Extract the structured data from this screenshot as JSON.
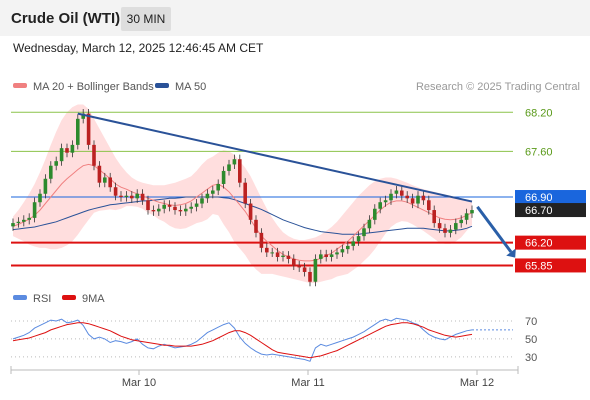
{
  "header": {
    "title": "Crude Oil (WTI)",
    "timeframe": "30 MIN",
    "timestamp": "Wednesday, March 12, 2025 12:46:45 AM CET"
  },
  "legend": {
    "ma20_label": "MA 20 + Bollinger Bands",
    "ma50_label": "MA 50",
    "credit": "Research © 2025 Trading Central"
  },
  "colors": {
    "ma20": "#f08080",
    "ma50": "#2a5298",
    "bands_fill": "#ffd6d6",
    "resistance": "#8bc34a",
    "support": "#dd1111",
    "pivot": "#1a66dd",
    "candle_up": "#2d8a2d",
    "candle_down": "#bb2222",
    "rsi": "#5b8be0",
    "rsi_ma": "#dd1111",
    "arrow": "#2a5fa8"
  },
  "chart_data": [
    {
      "type": "candlestick",
      "instrument": "Crude Oil (WTI)",
      "interval": "30 MIN",
      "x_ticks": [
        "Mar 10",
        "Mar 11",
        "Mar 12"
      ],
      "ylim": [
        65.55,
        68.45
      ],
      "levels": [
        {
          "value": 68.2,
          "label": "68.20",
          "kind": "resistance"
        },
        {
          "value": 67.6,
          "label": "67.60",
          "kind": "resistance"
        },
        {
          "value": 66.9,
          "label": "66.90",
          "kind": "pivot"
        },
        {
          "value": 66.7,
          "label": "66.70",
          "kind": "last"
        },
        {
          "value": 66.2,
          "label": "66.20",
          "kind": "support"
        },
        {
          "value": 65.85,
          "label": "65.85",
          "kind": "support"
        }
      ],
      "trendline": {
        "from": {
          "bar": 12,
          "value": 68.18
        },
        "to": {
          "bar": 85,
          "value": 66.83
        }
      },
      "forecast_arrow": {
        "from": {
          "bar": 86,
          "value": 66.75
        },
        "to": {
          "bar": 93,
          "value": 65.97
        }
      },
      "closes": [
        66.5,
        66.52,
        66.55,
        66.58,
        66.82,
        66.95,
        67.18,
        67.38,
        67.45,
        67.65,
        67.58,
        67.7,
        68.1,
        68.18,
        67.7,
        67.38,
        67.12,
        67.2,
        67.05,
        66.92,
        66.9,
        66.92,
        66.88,
        66.95,
        66.85,
        66.7,
        66.68,
        66.72,
        66.78,
        66.75,
        66.7,
        66.68,
        66.72,
        66.75,
        66.8,
        66.88,
        66.95,
        67.0,
        67.1,
        67.3,
        67.4,
        67.48,
        67.12,
        66.8,
        66.55,
        66.35,
        66.12,
        66.05,
        66.05,
        65.98,
        66.0,
        65.95,
        65.85,
        65.82,
        65.75,
        65.6,
        65.95,
        66.02,
        65.98,
        66.02,
        66.05,
        66.1,
        66.15,
        66.22,
        66.3,
        66.42,
        66.55,
        66.72,
        66.82,
        66.85,
        66.95,
        67.0,
        66.92,
        66.88,
        66.8,
        66.92,
        66.85,
        66.7,
        66.5,
        66.42,
        66.35,
        66.4,
        66.5,
        66.55,
        66.65,
        66.7
      ],
      "ma20": [
        66.45,
        66.48,
        66.52,
        66.56,
        66.62,
        66.7,
        66.8,
        66.9,
        67.0,
        67.1,
        67.18,
        67.25,
        67.32,
        67.38,
        67.4,
        67.38,
        67.32,
        67.25,
        67.18,
        67.1,
        67.05,
        67.02,
        66.98,
        66.95,
        66.92,
        66.88,
        66.85,
        66.82,
        66.8,
        66.78,
        66.77,
        66.78,
        66.8,
        66.84,
        66.9,
        66.96,
        67.02,
        67.08,
        67.1,
        67.05,
        66.98,
        66.88,
        66.78,
        66.68,
        66.55,
        66.42,
        66.3,
        66.22,
        66.15,
        66.08,
        66.02,
        65.98,
        65.95,
        65.93,
        65.92,
        65.92,
        65.93,
        65.96,
        66.0,
        66.04,
        66.1,
        66.16,
        66.22,
        66.3,
        66.38,
        66.46,
        66.54,
        66.62,
        66.7,
        66.77,
        66.82,
        66.84,
        66.84,
        66.82,
        66.78,
        66.74,
        66.7,
        66.66,
        66.62,
        66.58,
        66.56,
        66.55,
        66.56,
        66.58,
        66.62,
        66.66
      ],
      "bb_upper": [
        66.6,
        66.7,
        66.82,
        66.95,
        67.1,
        67.28,
        67.48,
        67.7,
        67.9,
        68.08,
        68.2,
        68.28,
        68.32,
        68.32,
        68.25,
        68.1,
        67.95,
        67.8,
        67.65,
        67.5,
        67.38,
        67.28,
        67.2,
        67.15,
        67.12,
        67.1,
        67.08,
        67.08,
        67.08,
        67.1,
        67.12,
        67.15,
        67.18,
        67.22,
        67.3,
        67.4,
        67.48,
        67.52,
        67.58,
        67.62,
        67.6,
        67.55,
        67.45,
        67.35,
        67.22,
        67.05,
        66.88,
        66.72,
        66.58,
        66.46,
        66.36,
        66.3,
        66.26,
        66.24,
        66.24,
        66.26,
        66.28,
        66.32,
        66.38,
        66.44,
        66.52,
        66.62,
        66.72,
        66.82,
        66.92,
        67.0,
        67.08,
        67.14,
        67.18,
        67.2,
        67.2,
        67.18,
        67.15,
        67.12,
        67.08,
        67.05,
        67.02,
        67.0,
        66.98,
        66.96,
        66.94,
        66.92,
        66.9,
        66.88,
        66.86,
        66.85
      ],
      "bb_lower": [
        66.3,
        66.26,
        66.22,
        66.17,
        66.14,
        66.12,
        66.12,
        66.1,
        66.1,
        66.12,
        66.16,
        66.22,
        66.32,
        66.44,
        66.55,
        66.66,
        66.69,
        66.7,
        66.71,
        66.7,
        66.72,
        66.76,
        66.76,
        66.75,
        66.72,
        66.66,
        66.62,
        66.56,
        66.52,
        66.46,
        66.42,
        66.41,
        66.42,
        66.46,
        66.5,
        66.52,
        66.56,
        66.64,
        66.62,
        66.48,
        66.36,
        66.21,
        66.11,
        66.01,
        65.88,
        65.79,
        65.72,
        65.72,
        65.72,
        65.7,
        65.68,
        65.66,
        65.64,
        65.62,
        65.6,
        65.58,
        65.58,
        65.6,
        65.62,
        65.64,
        65.68,
        65.7,
        65.72,
        65.78,
        65.84,
        65.92,
        66.0,
        66.1,
        66.22,
        66.34,
        66.44,
        66.5,
        66.53,
        66.52,
        66.48,
        66.43,
        66.38,
        66.32,
        66.26,
        66.2,
        66.18,
        66.18,
        66.22,
        66.28,
        66.38,
        66.47
      ],
      "ma50": [
        66.4,
        66.41,
        66.42,
        66.43,
        66.44,
        66.46,
        66.48,
        66.5,
        66.52,
        66.55,
        66.58,
        66.61,
        66.64,
        66.67,
        66.7,
        66.72,
        66.74,
        66.76,
        66.78,
        66.79,
        66.8,
        66.81,
        66.82,
        66.83,
        66.84,
        66.84,
        66.85,
        66.86,
        66.87,
        66.88,
        66.88,
        66.89,
        66.9,
        66.9,
        66.9,
        66.9,
        66.9,
        66.9,
        66.9,
        66.89,
        66.88,
        66.86,
        66.83,
        66.8,
        66.77,
        66.74,
        66.71,
        66.67,
        66.63,
        66.59,
        66.55,
        66.52,
        66.49,
        66.46,
        66.43,
        66.41,
        66.39,
        66.37,
        66.36,
        66.35,
        66.34,
        66.33,
        66.33,
        66.33,
        66.33,
        66.34,
        66.35,
        66.36,
        66.37,
        66.38,
        66.39,
        66.4,
        66.41,
        66.42,
        66.42,
        66.42,
        66.42,
        66.41,
        66.4,
        66.39,
        66.38,
        66.38,
        66.39,
        66.4,
        66.42,
        66.45
      ]
    },
    {
      "type": "line",
      "legend": [
        "RSI",
        "9MA"
      ],
      "x_ticks": [
        "Mar 10",
        "Mar 11",
        "Mar 12"
      ],
      "y_ticks": [
        70,
        50,
        30
      ],
      "ylim": [
        22,
        80
      ],
      "series": [
        {
          "name": "RSI",
          "values": [
            50,
            52,
            54,
            57,
            62,
            65,
            68,
            71,
            70,
            72,
            68,
            69,
            71,
            65,
            55,
            50,
            52,
            50,
            46,
            48,
            47,
            45,
            47,
            50,
            44,
            40,
            39,
            42,
            44,
            42,
            40,
            41,
            42,
            44,
            47,
            52,
            57,
            60,
            63,
            66,
            68,
            62,
            52,
            45,
            40,
            36,
            33,
            32,
            33,
            32,
            31,
            30,
            29,
            28,
            27,
            25,
            40,
            44,
            42,
            44,
            46,
            48,
            50,
            52,
            55,
            58,
            62,
            66,
            70,
            72,
            70,
            73,
            72,
            71,
            68,
            66,
            60,
            55,
            52,
            50,
            49,
            52,
            55,
            57,
            59,
            60
          ]
        },
        {
          "name": "9MA",
          "values": [
            48,
            49,
            50,
            51,
            53,
            55,
            57,
            60,
            62,
            64,
            66,
            67,
            68,
            68,
            67,
            65,
            63,
            61,
            59,
            56,
            53,
            51,
            49,
            48,
            47,
            46,
            45,
            44,
            43,
            43,
            42,
            42,
            42,
            42,
            43,
            44,
            46,
            48,
            51,
            54,
            57,
            59,
            59,
            57,
            54,
            50,
            46,
            42,
            38,
            35,
            34,
            33,
            32,
            31,
            30,
            29,
            30,
            31,
            33,
            35,
            37,
            40,
            43,
            46,
            49,
            52,
            55,
            58,
            61,
            64,
            66,
            67,
            68,
            68,
            67,
            65,
            63,
            60,
            58,
            56,
            54,
            53,
            52,
            53,
            54,
            55
          ]
        }
      ]
    }
  ]
}
